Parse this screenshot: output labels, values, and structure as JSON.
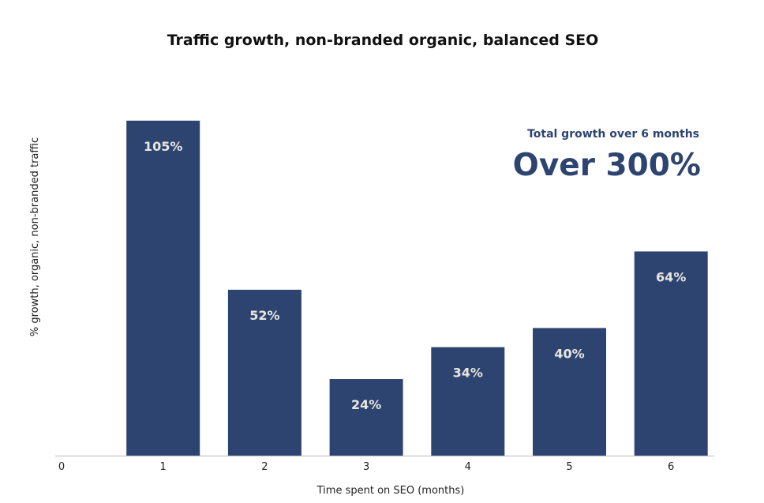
{
  "chart_data": {
    "type": "bar",
    "title": "Traffic growth, non-branded organic, balanced SEO",
    "xlabel": "Time spent on SEO (months)",
    "ylabel": "% growth, organic, non-branded traffic",
    "x_ticks": [
      "0",
      "1",
      "2",
      "3",
      "4",
      "5",
      "6"
    ],
    "categories": [
      "1",
      "2",
      "3",
      "4",
      "5",
      "6"
    ],
    "values": [
      105,
      52,
      24,
      34,
      40,
      64
    ],
    "data_labels": [
      "105%",
      "52%",
      "24%",
      "34%",
      "40%",
      "64%"
    ],
    "ylim": [
      0,
      110
    ],
    "grid": false,
    "bar_color": "#2e4470",
    "annotation": {
      "subtitle": "Total growth over 6 months",
      "headline": "Over 300%"
    }
  }
}
